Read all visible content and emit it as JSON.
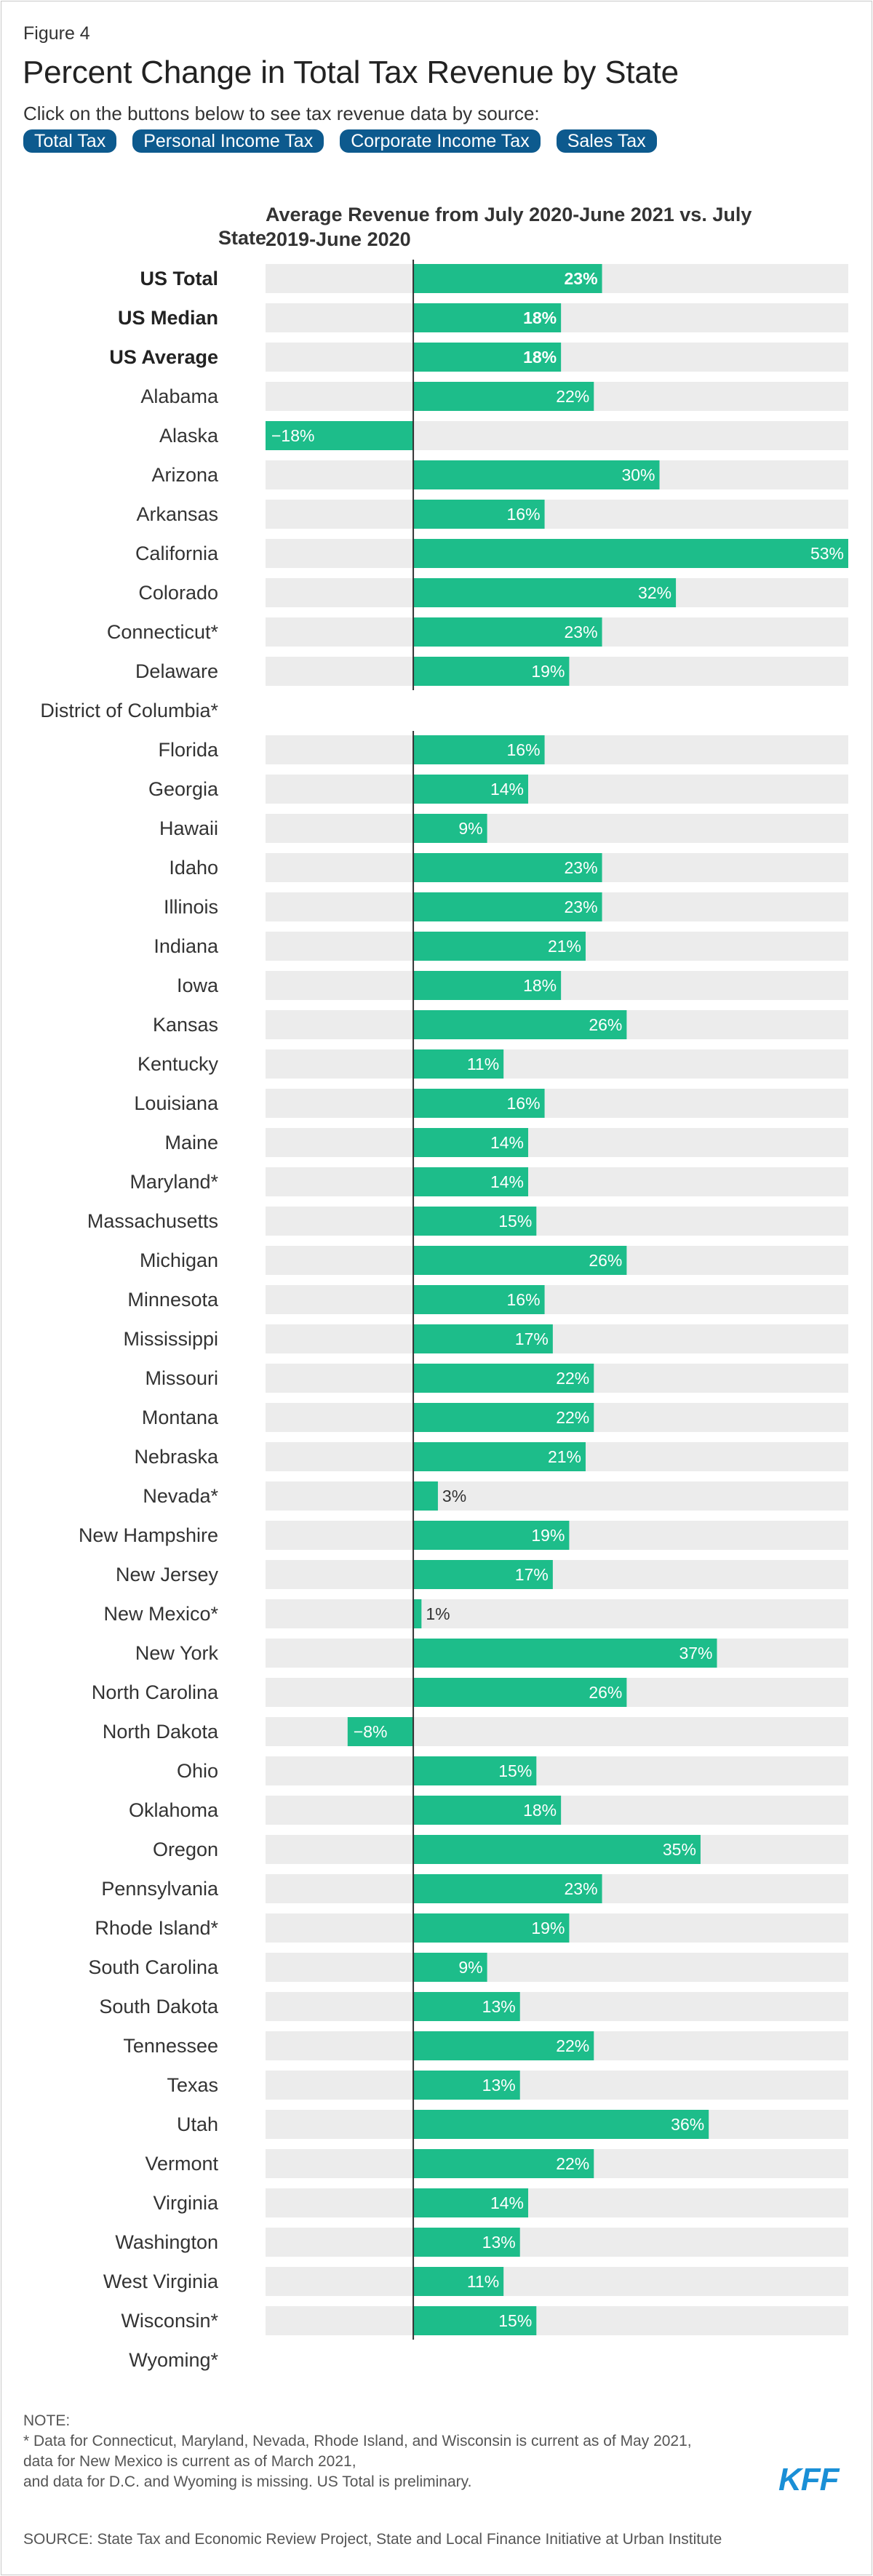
{
  "figure_label": "Figure 4",
  "title": "Percent Change in Total Tax Revenue by State",
  "subtitle": "Click on the buttons below to see tax revenue data by source:",
  "buttons": [
    "Total Tax",
    "Personal Income Tax",
    "Corporate Income Tax",
    "Sales Tax"
  ],
  "colors": {
    "bar": "#1dbd8a",
    "track": "#ececec",
    "button": "#0d5a8e",
    "logo": "#1a8fd6"
  },
  "chart_data": {
    "type": "bar",
    "orientation": "horizontal",
    "title": "Percent Change in Total Tax Revenue by State",
    "row_header": "State",
    "series_header": "Average Revenue from July 2020-June 2021 vs. July 2019-June 2020",
    "xlim": [
      -18,
      53
    ],
    "grid": false,
    "categories": [
      "US Total",
      "US Median",
      "US Average",
      "Alabama",
      "Alaska",
      "Arizona",
      "Arkansas",
      "California",
      "Colorado",
      "Connecticut*",
      "Delaware",
      "District of Columbia*",
      "Florida",
      "Georgia",
      "Hawaii",
      "Idaho",
      "Illinois",
      "Indiana",
      "Iowa",
      "Kansas",
      "Kentucky",
      "Louisiana",
      "Maine",
      "Maryland*",
      "Massachusetts",
      "Michigan",
      "Minnesota",
      "Mississippi",
      "Missouri",
      "Montana",
      "Nebraska",
      "Nevada*",
      "New Hampshire",
      "New Jersey",
      "New Mexico*",
      "New York",
      "North Carolina",
      "North Dakota",
      "Ohio",
      "Oklahoma",
      "Oregon",
      "Pennsylvania",
      "Rhode Island*",
      "South Carolina",
      "South Dakota",
      "Tennessee",
      "Texas",
      "Utah",
      "Vermont",
      "Virginia",
      "Washington",
      "West Virginia",
      "Wisconsin*",
      "Wyoming*"
    ],
    "bold_categories": [
      "US Total",
      "US Median",
      "US Average"
    ],
    "values": [
      23,
      18,
      18,
      22,
      -18,
      30,
      16,
      53,
      32,
      23,
      19,
      null,
      16,
      14,
      9,
      23,
      23,
      21,
      18,
      26,
      11,
      16,
      14,
      14,
      15,
      26,
      16,
      17,
      22,
      22,
      21,
      3,
      19,
      17,
      1,
      37,
      26,
      -8,
      15,
      18,
      35,
      23,
      19,
      9,
      13,
      22,
      13,
      36,
      22,
      14,
      13,
      11,
      15,
      null
    ],
    "value_labels": [
      "23%",
      "18%",
      "18%",
      "22%",
      "−18%",
      "30%",
      "16%",
      "53%",
      "32%",
      "23%",
      "19%",
      "",
      "16%",
      "14%",
      "9%",
      "23%",
      "23%",
      "21%",
      "18%",
      "26%",
      "11%",
      "16%",
      "14%",
      "14%",
      "15%",
      "26%",
      "16%",
      "17%",
      "22%",
      "22%",
      "21%",
      "3%",
      "19%",
      "17%",
      "1%",
      "37%",
      "26%",
      "−8%",
      "15%",
      "18%",
      "35%",
      "23%",
      "19%",
      "9%",
      "13%",
      "22%",
      "13%",
      "36%",
      "22%",
      "14%",
      "13%",
      "11%",
      "15%",
      ""
    ]
  },
  "notes": {
    "heading": "NOTE:",
    "lines": [
      "* Data for Connecticut, Maryland, Nevada, Rhode Island, and Wisconsin is current as of May 2021,",
      "data for New Mexico is current as of March 2021,",
      "and data for D.C. and Wyoming is missing. US Total is preliminary."
    ]
  },
  "logo_text": "KFF",
  "source": "SOURCE: State Tax and Economic Review Project, State and Local Finance Initiative at Urban Institute"
}
